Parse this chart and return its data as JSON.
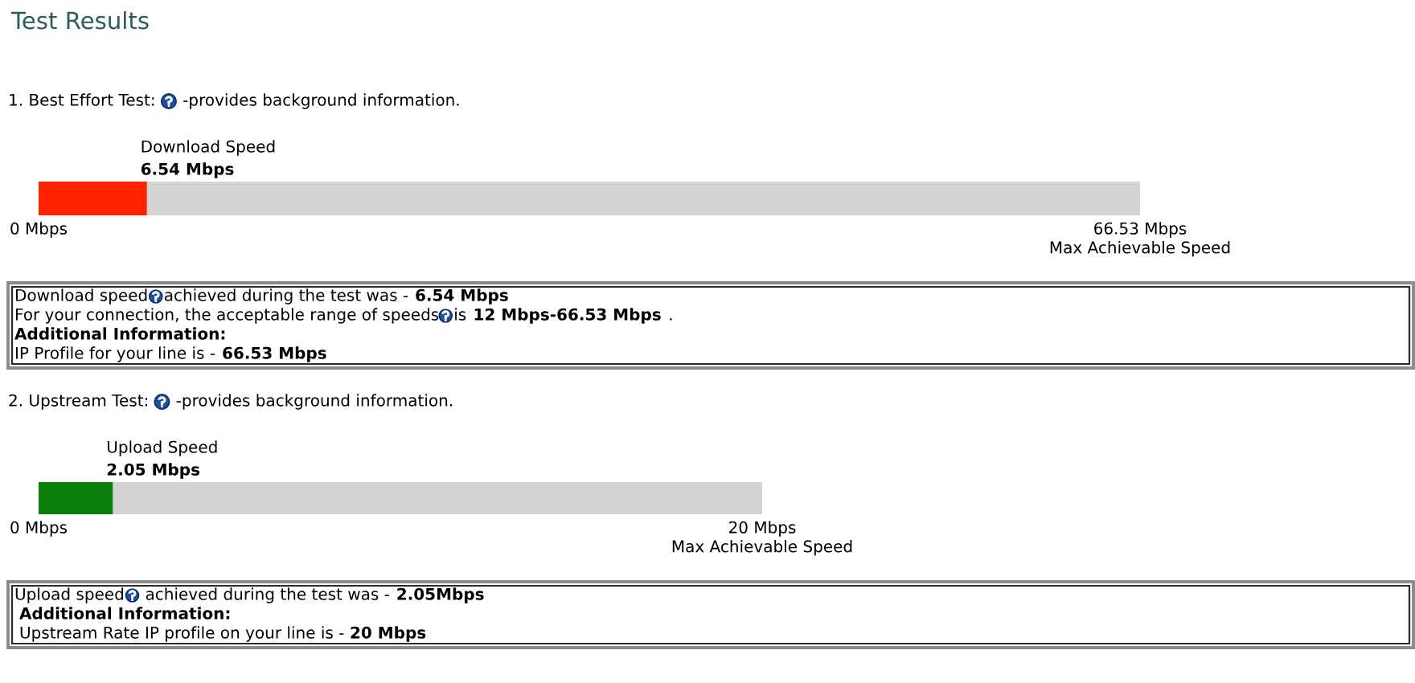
{
  "chart_data": [
    {
      "type": "bar",
      "orientation": "horizontal",
      "title": "Test Results",
      "subtitle": "1. Best Effort Test:",
      "categories": [
        "Download Speed"
      ],
      "values": [
        6.54
      ],
      "color": "#ff2200",
      "value_labels": [
        "6.54 Mbps"
      ],
      "xlim": [
        0,
        66.53
      ],
      "xticks": [
        {
          "value": 0,
          "label": "0 Mbps"
        },
        {
          "value": 66.53,
          "label": "66.53 Mbps"
        }
      ],
      "xlabel": "Max Achievable Speed",
      "annotations": [
        "-provides background information.",
        "Download speed",
        "achieved during the test was -",
        "6.54 Mbps",
        "For your connection, the acceptable range of speeds",
        "is",
        "12 Mbps-66.53 Mbps",
        ".",
        "Additional Information:",
        "IP Profile for your line is -",
        "66.53 Mbps"
      ]
    },
    {
      "type": "bar",
      "orientation": "horizontal",
      "subtitle": "2. Upstream Test:",
      "categories": [
        "Upload Speed"
      ],
      "values": [
        2.05
      ],
      "color": "#0a800a",
      "value_labels": [
        "2.05 Mbps"
      ],
      "xlim": [
        0,
        20
      ],
      "xticks": [
        {
          "value": 0,
          "label": "0 Mbps"
        },
        {
          "value": 20,
          "label": "20 Mbps"
        }
      ],
      "xlabel": "Max Achievable Speed",
      "annotations": [
        "-provides background information.",
        "Upload speed",
        "achieved during the test was -",
        "2.05Mbps",
        "Additional Information:",
        "Upstream Rate IP profile on your line is -",
        "20 Mbps"
      ]
    }
  ]
}
